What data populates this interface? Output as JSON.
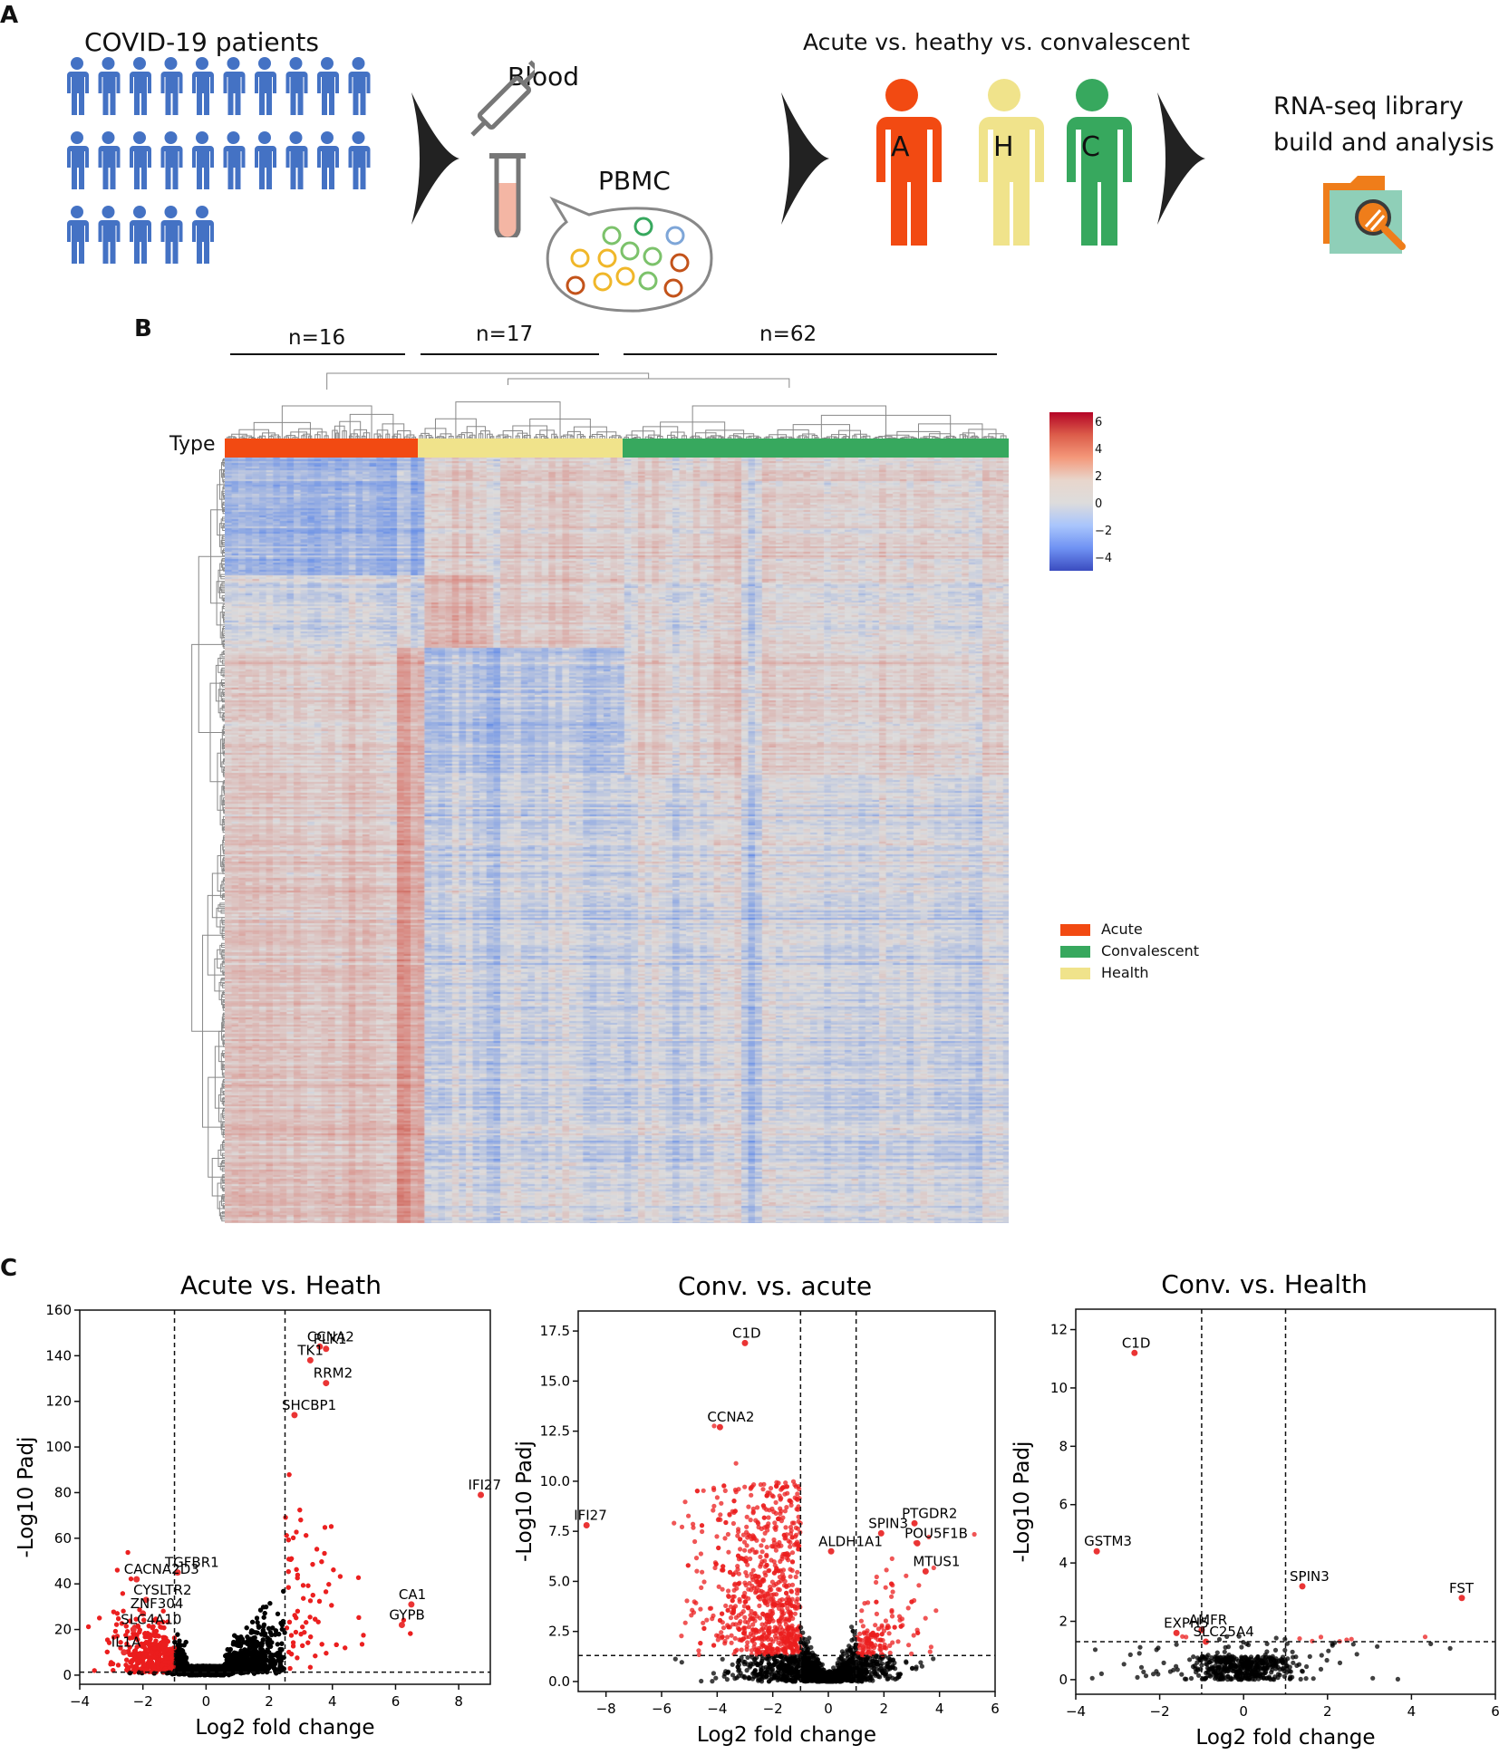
{
  "panelA": {
    "label": "A",
    "patients_title": "COVID-19 patients",
    "blood_label": "Blood",
    "pbmc_label": "PBMC",
    "comparison_title": "Acute vs. heathy vs. convalescent",
    "figures": [
      {
        "letter": "A",
        "color": "#f24a12"
      },
      {
        "letter": "H",
        "color": "#f0e38b"
      },
      {
        "letter": "C",
        "color": "#37a85e"
      }
    ],
    "rnaseq_line1": "RNA-seq library",
    "rnaseq_line2": "build and analysis",
    "patient_color": "#4472c4"
  },
  "panelB": {
    "label": "B",
    "groups": [
      {
        "n": "n=16",
        "name": "Acute",
        "color": "#f24a12"
      },
      {
        "n": "n=17",
        "name": "Health",
        "color": "#f0e38b"
      },
      {
        "n": "n=62",
        "name": "Convalescent",
        "color": "#37a85e"
      }
    ],
    "type_label": "Type",
    "colorbar_ticks": [
      "6",
      "4",
      "2",
      "0",
      "−2",
      "−4"
    ],
    "legend": [
      {
        "label": "Acute",
        "color": "#f24a12"
      },
      {
        "label": "Convalescent",
        "color": "#37a85e"
      },
      {
        "label": "Health",
        "color": "#f0e38b"
      }
    ]
  },
  "panelC": {
    "label": "C"
  },
  "chart_data": [
    {
      "type": "scatter",
      "title": "Acute vs. Heath",
      "xlabel": "Log2 fold change",
      "ylabel": "-Log10 Padj",
      "xlim": [
        -4,
        9
      ],
      "ylim": [
        -4,
        160
      ],
      "xticks": [
        -4,
        -2,
        0,
        2,
        4,
        6,
        8
      ],
      "yticks": [
        0,
        20,
        40,
        60,
        80,
        100,
        120,
        140,
        160
      ],
      "vlines": [
        -1,
        2.5
      ],
      "hline": 1.3,
      "labeled_points": [
        {
          "gene": "CCNA2",
          "x": 3.6,
          "y": 144
        },
        {
          "gene": "PLK1",
          "x": 3.8,
          "y": 143
        },
        {
          "gene": "TK1",
          "x": 3.3,
          "y": 138
        },
        {
          "gene": "RRM2",
          "x": 3.8,
          "y": 128
        },
        {
          "gene": "SHCBP1",
          "x": 2.8,
          "y": 114
        },
        {
          "gene": "IFI27",
          "x": 8.7,
          "y": 79
        },
        {
          "gene": "TGFBR1",
          "x": -0.9,
          "y": 45
        },
        {
          "gene": "CACNA2D3",
          "x": -2.2,
          "y": 42
        },
        {
          "gene": "CYSLTR2",
          "x": -1.9,
          "y": 33
        },
        {
          "gene": "ZNF304",
          "x": -2.0,
          "y": 27
        },
        {
          "gene": "SLC4A10",
          "x": -2.3,
          "y": 20
        },
        {
          "gene": "IL1A",
          "x": -2.6,
          "y": 10
        },
        {
          "gene": "CA1",
          "x": 6.5,
          "y": 31
        },
        {
          "gene": "GYPB",
          "x": 6.2,
          "y": 22
        }
      ]
    },
    {
      "type": "scatter",
      "title": "Conv. vs. acute",
      "xlabel": "Log2 fold change",
      "ylabel": "-Log10 Padj",
      "xlim": [
        -9,
        6
      ],
      "ylim": [
        -0.5,
        18.5
      ],
      "xticks": [
        -8,
        -6,
        -4,
        -2,
        0,
        2,
        4,
        6
      ],
      "yticks": [
        0.0,
        2.5,
        5.0,
        7.5,
        10.0,
        12.5,
        15.0,
        17.5
      ],
      "ytick_labels": [
        "0.0",
        "2.5",
        "5.0",
        "7.5",
        "10.0",
        "12.5",
        "15.0",
        "17.5"
      ],
      "vlines": [
        -1,
        1
      ],
      "hline": 1.3,
      "labeled_points": [
        {
          "gene": "C1D",
          "x": -3.0,
          "y": 16.9
        },
        {
          "gene": "CCNA2",
          "x": -3.9,
          "y": 12.7
        },
        {
          "gene": "IFI27",
          "x": -8.7,
          "y": 7.8
        },
        {
          "gene": "SPIN3",
          "x": 1.9,
          "y": 7.4
        },
        {
          "gene": "PTGDR2",
          "x": 3.1,
          "y": 7.9
        },
        {
          "gene": "POU5F1B",
          "x": 3.2,
          "y": 6.9
        },
        {
          "gene": "ALDH1A1",
          "x": 0.1,
          "y": 6.5
        },
        {
          "gene": "MTUS1",
          "x": 3.5,
          "y": 5.5
        }
      ]
    },
    {
      "type": "scatter",
      "title": "Conv. vs. Health",
      "xlabel": "Log2 fold change",
      "ylabel": "-Log10 Padj",
      "xlim": [
        -4,
        6
      ],
      "ylim": [
        -0.5,
        12.7
      ],
      "xticks": [
        -4,
        -2,
        0,
        2,
        4,
        6
      ],
      "yticks": [
        0,
        2,
        4,
        6,
        8,
        10,
        12
      ],
      "vlines": [
        -1,
        1
      ],
      "hline": 1.3,
      "labeled_points": [
        {
          "gene": "C1D",
          "x": -2.6,
          "y": 11.2
        },
        {
          "gene": "GSTM3",
          "x": -3.5,
          "y": 4.4
        },
        {
          "gene": "SPIN3",
          "x": 1.4,
          "y": 3.2
        },
        {
          "gene": "FST",
          "x": 5.2,
          "y": 2.8
        },
        {
          "gene": "EXPH5",
          "x": -1.6,
          "y": 1.6
        },
        {
          "gene": "AMFR",
          "x": -1.0,
          "y": 1.7
        },
        {
          "gene": "SLC25A4",
          "x": -0.9,
          "y": 1.3
        }
      ]
    }
  ]
}
